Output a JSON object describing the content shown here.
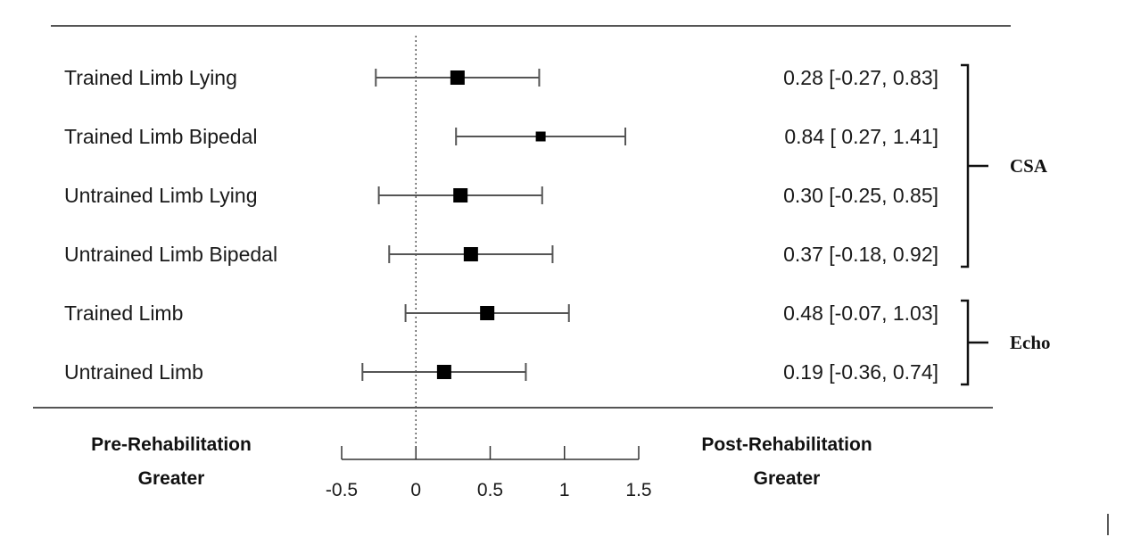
{
  "chart_data": {
    "type": "forest",
    "rows": [
      {
        "label": "Trained Limb Lying",
        "estimate": 0.28,
        "lower": -0.27,
        "upper": 0.83,
        "ci_text": "0.28 [-0.27, 0.83]",
        "marker": "large"
      },
      {
        "label": "Trained Limb Bipedal",
        "estimate": 0.84,
        "lower": 0.27,
        "upper": 1.41,
        "ci_text": "0.84 [ 0.27, 1.41]",
        "marker": "small"
      },
      {
        "label": "Untrained Limb Lying",
        "estimate": 0.3,
        "lower": -0.25,
        "upper": 0.85,
        "ci_text": "0.30 [-0.25, 0.85]",
        "marker": "large"
      },
      {
        "label": "Untrained  Limb Bipedal",
        "estimate": 0.37,
        "lower": -0.18,
        "upper": 0.92,
        "ci_text": "0.37 [-0.18, 0.92]",
        "marker": "large"
      },
      {
        "label": "Trained Limb",
        "estimate": 0.48,
        "lower": -0.07,
        "upper": 1.03,
        "ci_text": "0.48 [-0.07, 1.03]",
        "marker": "large"
      },
      {
        "label": "Untrained Limb",
        "estimate": 0.19,
        "lower": -0.36,
        "upper": 0.74,
        "ci_text": "0.19 [-0.36, 0.74]",
        "marker": "large"
      }
    ],
    "groups": [
      {
        "label": "CSA",
        "rows": [
          0,
          3
        ]
      },
      {
        "label": "Echo",
        "rows": [
          4,
          5
        ]
      }
    ],
    "x_ticks": [
      "-0.5",
      "0",
      "0.5",
      "1",
      "1.5"
    ],
    "x_tick_values": [
      -0.5,
      0,
      0.5,
      1,
      1.5
    ],
    "xlim": [
      -0.5,
      1.5
    ],
    "reference_line": 0,
    "left_label": [
      "Pre-Rehabilitation",
      "Greater"
    ],
    "right_label": [
      "Post-Rehabilitation",
      "Greater"
    ],
    "colors": {
      "marker": "#000000",
      "line": "#555555"
    }
  }
}
